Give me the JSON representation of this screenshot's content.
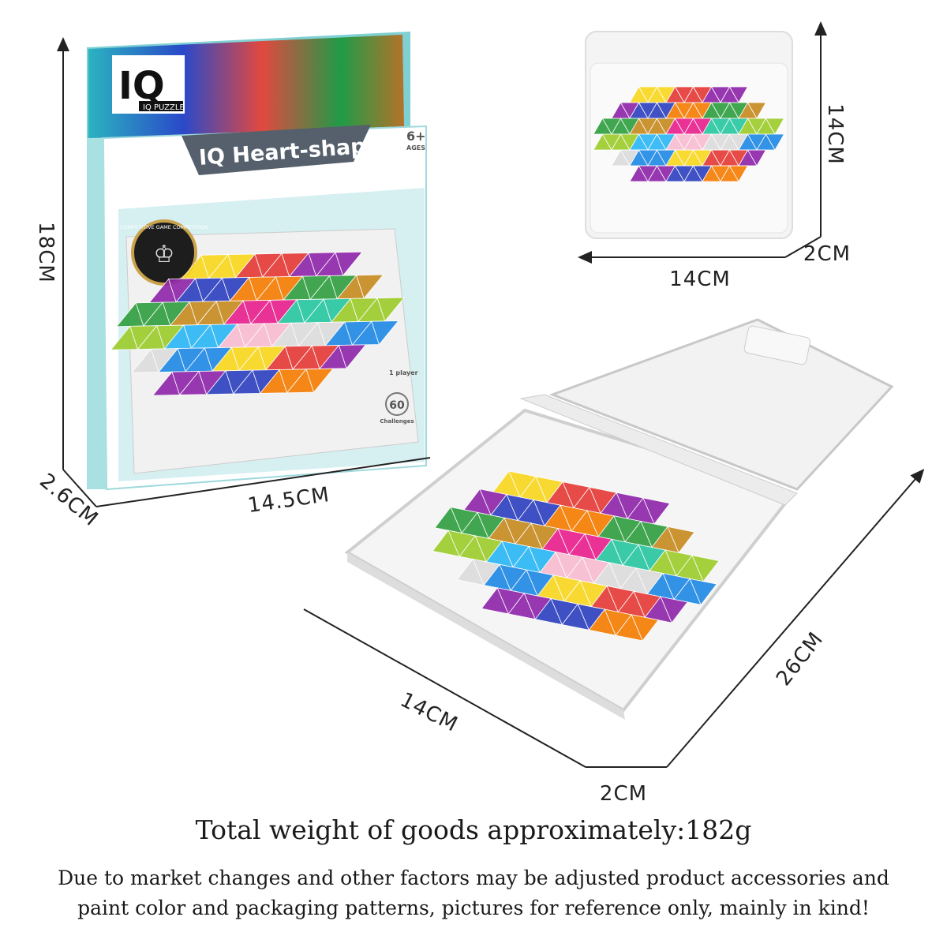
{
  "box": {
    "logo": "IQ PUZZLE",
    "title": "IQ Heart-shaped",
    "age": "6+",
    "age_label": "AGES",
    "badge": "COMPETITIVE GAME COMPETITION",
    "players": "1 player",
    "challenges_count": "60",
    "challenges_label": "Challenges"
  },
  "dimensions": {
    "box_height": "18CM",
    "box_depth": "2.6CM",
    "box_width": "14.5CM",
    "closed_height": "14CM",
    "closed_depth": "2CM",
    "closed_width": "14CM",
    "open_length": "26CM",
    "open_width": "14CM",
    "open_depth": "2CM"
  },
  "tile_colors": [
    "#1e88e5",
    "#f9d71c",
    "#e53935",
    "#8e24aa",
    "#2b3fbf",
    "#f57c00",
    "#2e9e3e",
    "#c68a1e",
    "#e91e8c",
    "#26c6a0",
    "#9ccc2a",
    "#29b6f6",
    "#f8bbd0",
    "#dcdcdc"
  ],
  "footer": {
    "weight": "Total weight of goods approximately:182g",
    "note_line1": "Due to market changes and other factors may be adjusted product accessories and",
    "note_line2": "paint color and packaging patterns, pictures for reference only, mainly in kind!"
  }
}
